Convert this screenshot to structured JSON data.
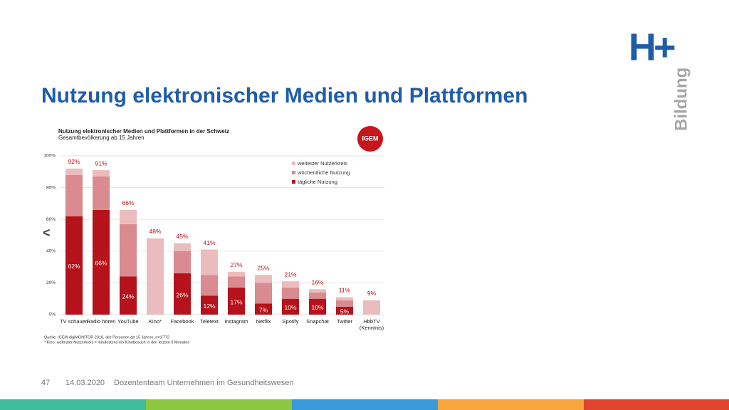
{
  "slide": {
    "title": "Nutzung elektronischer Medien und Plattformen",
    "logo": "H+",
    "logo_sub": "Bildung",
    "nav": "<",
    "page": "47",
    "date": "14.03.2020",
    "footer": "Dozententeam Unternehmen im Gesundheitswesen"
  },
  "chart_data": {
    "type": "stacked_bar",
    "title": "Nutzung elektronischer Medien und Plattformen in der Schweiz",
    "subtitle": "Gesamtbevölkerung ab 15 Jahren",
    "badge": "IGEM",
    "source": "Quelle: IGEM-digiMONITOR 2018, alle Personen ab 15 Jahren, n=1'772",
    "note": "* Kino: weitester Nutzerkreis = mindestens ein Kinobesuch in den letzten 6 Monaten",
    "categories": [
      "TV schauen",
      "Radio hören",
      "YouTube",
      "Kino*",
      "Facebook",
      "Teletext",
      "Instagram",
      "Netflix",
      "Spotify",
      "Snapchat",
      "Twitter",
      "HbbTV (Kenntnis)"
    ],
    "series": [
      {
        "name": "tägliche Nutzung",
        "color": "#b5121b",
        "values": [
          62,
          66,
          24,
          null,
          26,
          12,
          17,
          7,
          10,
          10,
          5,
          null
        ],
        "value_labels": [
          "62%",
          "66%",
          "24%",
          null,
          "26%",
          "12%",
          "17%",
          "7%",
          "10%",
          "10%",
          "5%",
          null
        ]
      },
      {
        "name": "wöchentliche Nutzung",
        "color": "#d98b8f",
        "values": [
          26,
          21,
          33,
          null,
          14,
          13,
          7,
          13,
          7,
          4,
          4,
          null
        ]
      },
      {
        "name": "weitester Nutzerkreis",
        "color": "#ebbcbd",
        "values": [
          4,
          4,
          9,
          48,
          5,
          16,
          3,
          5,
          4,
          2,
          2,
          9
        ]
      }
    ],
    "total_labels": [
      "92%",
      "91%",
      "66%",
      "48%",
      "45%",
      "41%",
      "27%",
      "25%",
      "21%",
      "16%",
      "11%",
      "9%"
    ],
    "ylim": [
      0,
      100
    ],
    "yticks": [
      {
        "value": 0,
        "label": "0%"
      },
      {
        "value": 20,
        "label": "20%"
      },
      {
        "value": 40,
        "label": "40%"
      },
      {
        "value": 60,
        "label": "60%"
      },
      {
        "value": 80,
        "label": "80%"
      },
      {
        "value": 100,
        "label": "100%"
      }
    ],
    "grid": true,
    "legend": "upper right"
  }
}
